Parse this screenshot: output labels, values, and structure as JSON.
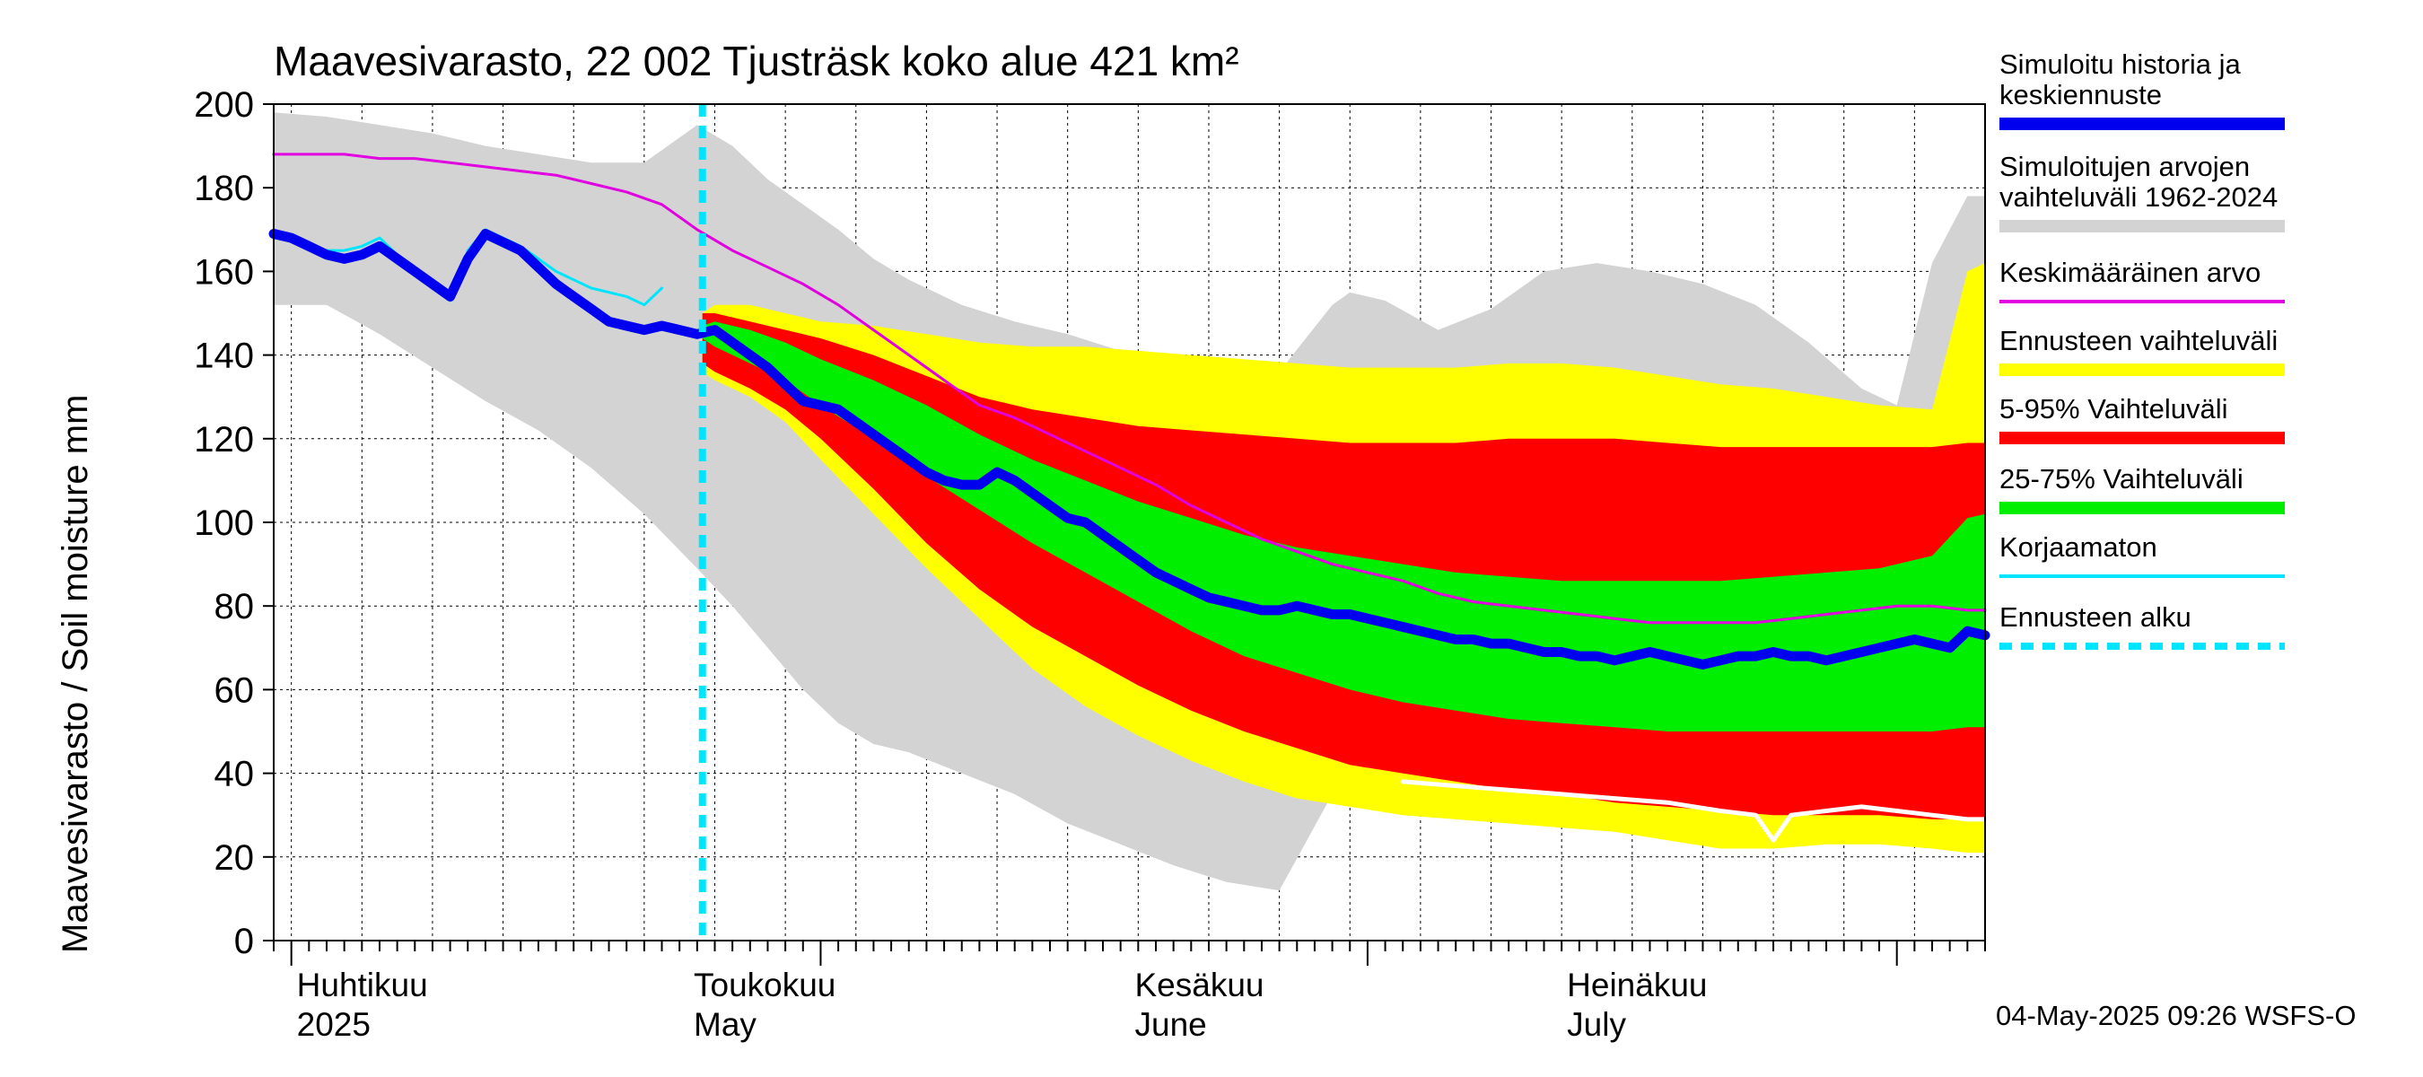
{
  "chart_data": {
    "type": "area",
    "title": "Maavesivarasto, 22 002 Tjusträsk koko alue 421 km²",
    "ylabel": "Maavesivarasto / Soil moisture   mm",
    "ylim": [
      0,
      200
    ],
    "yticks": [
      0,
      20,
      40,
      60,
      80,
      100,
      120,
      140,
      160,
      180,
      200
    ],
    "xlim_days": [
      0,
      97
    ],
    "x_unit": "days since 2025-04-01",
    "month_starts_days": [
      1,
      31,
      62,
      92
    ],
    "month_labels": [
      {
        "day": 1,
        "fi": "Huhtikuu",
        "en": "2025"
      },
      {
        "day": 23.5,
        "fi": "Toukokuu",
        "en": "May"
      },
      {
        "day": 48.5,
        "fi": "Kesäkuu",
        "en": "June"
      },
      {
        "day": 73,
        "fi": "Heinäkuu",
        "en": "July"
      }
    ],
    "forecast_start_day": 24.3,
    "series": [
      {
        "name": "Simuloitujen arvojen vaihteluväli 1962-2024",
        "kind": "band",
        "color": "#d3d3d3",
        "x": [
          0,
          3,
          6,
          9,
          12,
          15,
          18,
          21,
          24,
          26,
          28,
          30,
          32,
          34,
          36,
          39,
          42,
          45,
          48,
          51,
          54,
          57,
          60,
          61,
          63,
          66,
          69,
          72,
          75,
          78,
          81,
          84,
          87,
          90,
          92,
          94,
          96,
          97
        ],
        "upper": [
          198,
          197,
          195,
          193,
          190,
          188,
          186,
          186,
          195,
          190,
          182,
          176,
          170,
          163,
          158,
          152,
          148,
          145,
          141,
          139,
          137,
          136,
          152,
          155,
          153,
          146,
          151,
          160,
          162,
          160,
          157,
          152,
          143,
          132,
          128,
          162,
          178,
          178
        ],
        "lower": [
          152,
          152,
          145,
          137,
          129,
          122,
          113,
          102,
          89,
          80,
          70,
          60,
          52,
          47,
          45,
          40,
          35,
          28,
          23,
          18,
          14,
          12,
          35,
          38,
          37,
          35,
          31,
          29,
          28,
          27,
          25,
          24,
          25,
          26,
          26,
          27,
          27,
          27
        ]
      },
      {
        "name": "Ennusteen vaihteluväli",
        "kind": "band",
        "color": "#ffff00",
        "x": [
          24.3,
          25,
          27,
          29,
          31,
          34,
          37,
          40,
          43,
          46,
          49,
          52,
          55,
          58,
          61,
          64,
          67,
          70,
          73,
          76,
          79,
          82,
          85,
          88,
          91,
          94,
          96,
          97
        ],
        "upper": [
          150,
          152,
          152,
          150,
          148,
          147,
          145,
          143,
          142,
          142,
          141,
          140,
          139,
          138,
          137,
          137,
          137,
          138,
          138,
          137,
          135,
          133,
          132,
          130,
          128,
          127,
          160,
          162
        ],
        "lower": [
          136,
          134,
          130,
          124,
          115,
          102,
          89,
          77,
          65,
          56,
          49,
          43,
          38,
          34,
          32,
          30,
          29,
          28,
          27,
          26,
          24,
          22,
          22,
          23,
          23,
          22,
          21,
          21
        ]
      },
      {
        "name": "5-95% Vaihteluväli",
        "kind": "band",
        "color": "#ff0000",
        "x": [
          24.3,
          25,
          27,
          29,
          31,
          34,
          37,
          40,
          43,
          46,
          49,
          52,
          55,
          58,
          61,
          64,
          67,
          70,
          73,
          76,
          79,
          82,
          85,
          88,
          91,
          94,
          96,
          97
        ],
        "upper": [
          150,
          150,
          148,
          146,
          144,
          140,
          135,
          130,
          127,
          125,
          123,
          122,
          121,
          120,
          119,
          119,
          119,
          120,
          120,
          120,
          119,
          118,
          118,
          118,
          118,
          118,
          119,
          119
        ],
        "lower": [
          138,
          136,
          132,
          127,
          120,
          108,
          95,
          84,
          75,
          68,
          61,
          55,
          50,
          46,
          42,
          40,
          38,
          36,
          35,
          33,
          32,
          31,
          30,
          30,
          30,
          29,
          29,
          29
        ]
      },
      {
        "name": "25-75% Vaihteluväli",
        "kind": "band",
        "color": "#00ee00",
        "x": [
          24.3,
          25,
          27,
          29,
          31,
          34,
          37,
          40,
          43,
          46,
          49,
          52,
          55,
          58,
          61,
          64,
          67,
          70,
          73,
          76,
          79,
          82,
          85,
          88,
          91,
          94,
          96,
          97
        ],
        "upper": [
          147,
          148,
          146,
          143,
          139,
          134,
          128,
          121,
          115,
          110,
          105,
          101,
          97,
          94,
          92,
          90,
          88,
          87,
          86,
          86,
          86,
          86,
          87,
          88,
          89,
          92,
          101,
          102
        ],
        "lower": [
          144,
          142,
          138,
          134,
          128,
          120,
          111,
          103,
          95,
          88,
          81,
          74,
          68,
          64,
          60,
          57,
          55,
          53,
          52,
          51,
          50,
          50,
          50,
          50,
          50,
          50,
          51,
          51
        ]
      },
      {
        "name": "Keskimääräinen arvo",
        "kind": "line",
        "color": "#e000e0",
        "x": [
          0,
          2,
          4,
          6,
          8,
          10,
          12,
          14,
          16,
          18,
          20,
          22,
          24,
          26,
          28,
          30,
          32,
          34,
          36,
          38,
          40,
          42,
          44,
          46,
          48,
          50,
          52,
          54,
          56,
          58,
          60,
          62,
          64,
          66,
          68,
          70,
          72,
          74,
          76,
          78,
          80,
          82,
          84,
          86,
          88,
          90,
          92,
          94,
          96,
          97
        ],
        "y": [
          188,
          188,
          188,
          187,
          187,
          186,
          185,
          184,
          183,
          181,
          179,
          176,
          170,
          165,
          161,
          157,
          152,
          146,
          140,
          134,
          128,
          125,
          121,
          117,
          113,
          109,
          104,
          100,
          96,
          93,
          90,
          88,
          86,
          83,
          81,
          80,
          79,
          78,
          77,
          76,
          76,
          76,
          76,
          77,
          78,
          79,
          80,
          80,
          79,
          79
        ]
      },
      {
        "name": "Korjaamaton",
        "kind": "line",
        "color": "#00e5ff",
        "x": [
          0,
          1,
          2,
          3,
          4,
          5,
          6,
          7,
          8,
          9,
          10,
          11,
          12,
          13,
          14,
          15,
          16,
          17,
          18,
          19,
          20,
          21,
          22
        ],
        "y": [
          168,
          168,
          166,
          165,
          165,
          166,
          168,
          164,
          160,
          156,
          153,
          165,
          170,
          168,
          166,
          163,
          160,
          158,
          156,
          155,
          154,
          152,
          156
        ]
      },
      {
        "name": "Simuloitu historia ja keskiennuste",
        "kind": "line",
        "color": "#0000ee",
        "x": [
          0,
          1,
          2,
          3,
          4,
          5,
          6,
          7,
          8,
          9,
          10,
          11,
          12,
          13,
          14,
          15,
          16,
          17,
          18,
          19,
          20,
          21,
          22,
          23,
          24,
          25,
          26,
          27,
          28,
          29,
          30,
          31,
          32,
          33,
          34,
          35,
          36,
          37,
          38,
          39,
          40,
          41,
          42,
          43,
          44,
          45,
          46,
          47,
          48,
          49,
          50,
          51,
          52,
          53,
          54,
          55,
          56,
          57,
          58,
          59,
          60,
          61,
          62,
          63,
          64,
          65,
          66,
          67,
          68,
          69,
          70,
          71,
          72,
          73,
          74,
          75,
          76,
          77,
          78,
          79,
          80,
          81,
          82,
          83,
          84,
          85,
          86,
          87,
          88,
          89,
          90,
          91,
          92,
          93,
          94,
          95,
          96,
          97
        ],
        "y": [
          169,
          168,
          166,
          164,
          163,
          164,
          166,
          163,
          160,
          157,
          154,
          163,
          169,
          167,
          165,
          161,
          157,
          154,
          151,
          148,
          147,
          146,
          147,
          146,
          145,
          146,
          143,
          140,
          137,
          133,
          129,
          128,
          127,
          124,
          121,
          118,
          115,
          112,
          110,
          109,
          109,
          112,
          110,
          107,
          104,
          101,
          100,
          97,
          94,
          91,
          88,
          86,
          84,
          82,
          81,
          80,
          79,
          79,
          80,
          79,
          78,
          78,
          77,
          76,
          75,
          74,
          73,
          72,
          72,
          71,
          71,
          70,
          69,
          69,
          68,
          68,
          67,
          68,
          69,
          68,
          67,
          66,
          67,
          68,
          68,
          69,
          68,
          68,
          67,
          68,
          69,
          70,
          71,
          72,
          71,
          70,
          74,
          73
        ]
      },
      {
        "name": "Minimum (history)",
        "kind": "line",
        "color": "#ffffff",
        "x": [
          64,
          67,
          70,
          73,
          76,
          79,
          82,
          84,
          85,
          86,
          88,
          90,
          92,
          94,
          96,
          97
        ],
        "y": [
          38,
          37,
          36,
          35,
          34,
          33,
          31,
          30,
          24,
          30,
          31,
          32,
          31,
          30,
          29,
          29
        ]
      }
    ],
    "legend": [
      {
        "label": "Simuloitu historia ja keskiennuste",
        "color": "#0000ee",
        "style": "thick"
      },
      {
        "label": "Simuloitujen arvojen vaihteluväli 1962-2024",
        "color": "#d3d3d3",
        "style": "thick"
      },
      {
        "label": "Keskimääräinen arvo",
        "color": "#e000e0",
        "style": "thin"
      },
      {
        "label": "Ennusteen vaihteluväli",
        "color": "#ffff00",
        "style": "thick"
      },
      {
        "label": "5-95% Vaihteluväli",
        "color": "#ff0000",
        "style": "thick"
      },
      {
        "label": "25-75% Vaihteluväli",
        "color": "#00ee00",
        "style": "thick"
      },
      {
        "label": "Korjaamaton",
        "color": "#00e5ff",
        "style": "thin"
      },
      {
        "label": "Ennusteen alku",
        "color": "#00e5ff",
        "style": "dashed"
      }
    ],
    "footer": "04-May-2025 09:26 WSFS-O"
  }
}
